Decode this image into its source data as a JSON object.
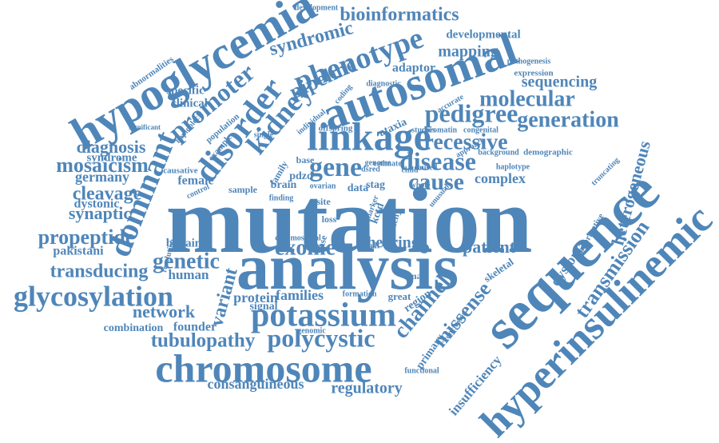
{
  "color": "#4f86b9",
  "words": [
    {
      "text": "mutation"
    },
    {
      "text": "analysis"
    },
    {
      "text": "sequence"
    },
    {
      "text": "hyperinsulinemic"
    },
    {
      "text": "hypoglycemia"
    },
    {
      "text": "autosomal"
    },
    {
      "text": "linkage"
    },
    {
      "text": "chromosome"
    },
    {
      "text": "potassium"
    },
    {
      "text": "glycosylation"
    },
    {
      "text": "dominant"
    },
    {
      "text": "disorder"
    },
    {
      "text": "promoter"
    },
    {
      "text": "phenotype"
    },
    {
      "text": "kidney"
    },
    {
      "text": "pipeline"
    },
    {
      "text": "pedigree"
    },
    {
      "text": "gene"
    },
    {
      "text": "disease"
    },
    {
      "text": "cause"
    },
    {
      "text": "recessive"
    },
    {
      "text": "molecular"
    },
    {
      "text": "generation"
    },
    {
      "text": "bioinformatics"
    },
    {
      "text": "syndromic"
    },
    {
      "text": "mapping"
    },
    {
      "text": "developmental"
    },
    {
      "text": "sequencing"
    },
    {
      "text": "adaptor"
    },
    {
      "text": "transmission"
    },
    {
      "text": "heterogeneous"
    },
    {
      "text": "polycystic"
    },
    {
      "text": "tubulopathy"
    },
    {
      "text": "channel"
    },
    {
      "text": "missense"
    },
    {
      "text": "exome"
    },
    {
      "text": "genetic"
    },
    {
      "text": "variant"
    },
    {
      "text": "transducing"
    },
    {
      "text": "propeptide"
    },
    {
      "text": "mosaicism"
    },
    {
      "text": "cleavage"
    },
    {
      "text": "diagnosis"
    },
    {
      "text": "network"
    },
    {
      "text": "consanguineous"
    },
    {
      "text": "regulatory"
    },
    {
      "text": "insufficiency"
    },
    {
      "text": "dystonia"
    },
    {
      "text": "patient"
    },
    {
      "text": "hearing"
    },
    {
      "text": "families"
    },
    {
      "text": "protein"
    },
    {
      "text": "complex"
    },
    {
      "text": "synaptic"
    },
    {
      "text": "dystonic"
    },
    {
      "text": "germany"
    },
    {
      "text": "syndrome"
    },
    {
      "text": "pakistani"
    },
    {
      "text": "human"
    },
    {
      "text": "founder"
    },
    {
      "text": "combination"
    },
    {
      "text": "britain"
    },
    {
      "text": "specific"
    },
    {
      "text": "clinical"
    },
    {
      "text": "abnormalities"
    },
    {
      "text": "development"
    },
    {
      "text": "pathogenesis"
    },
    {
      "text": "expression"
    },
    {
      "text": "accurate"
    },
    {
      "text": "diagnostic"
    },
    {
      "text": "approach"
    },
    {
      "text": "ataxia"
    },
    {
      "text": "chromatin"
    },
    {
      "text": "studies"
    },
    {
      "text": "congenital"
    },
    {
      "text": "background"
    },
    {
      "text": "demographic"
    },
    {
      "text": "haplotype"
    },
    {
      "text": "informative"
    },
    {
      "text": "truncating"
    },
    {
      "text": "skeletal"
    },
    {
      "text": "conclusion"
    },
    {
      "text": "primary"
    },
    {
      "text": "functional"
    },
    {
      "text": "region"
    },
    {
      "text": "great"
    },
    {
      "text": "male"
    },
    {
      "text": "genomic"
    },
    {
      "text": "formation"
    },
    {
      "text": "signal"
    },
    {
      "text": "female"
    },
    {
      "text": "family"
    },
    {
      "text": "base"
    },
    {
      "text": "pdzd"
    },
    {
      "text": "brain"
    },
    {
      "text": "data"
    },
    {
      "text": "stag"
    },
    {
      "text": "site"
    },
    {
      "text": "loss"
    },
    {
      "text": "case"
    },
    {
      "text": "ovarian"
    },
    {
      "text": "kcnj"
    },
    {
      "text": "kctd"
    },
    {
      "text": "rare"
    },
    {
      "text": "whole"
    },
    {
      "text": "child"
    },
    {
      "text": "caused"
    },
    {
      "text": "sample"
    },
    {
      "text": "control"
    },
    {
      "text": "causative"
    },
    {
      "text": "significant"
    },
    {
      "text": "haploblock"
    },
    {
      "text": "population"
    },
    {
      "text": "example"
    },
    {
      "text": "single"
    },
    {
      "text": "individual"
    },
    {
      "text": "offspring"
    },
    {
      "text": "coding"
    },
    {
      "text": "resolution"
    },
    {
      "text": "chromosomal"
    },
    {
      "text": "result"
    },
    {
      "text": "finding"
    },
    {
      "text": "unusual"
    },
    {
      "text": "genome"
    },
    {
      "text": "estimate"
    },
    {
      "text": "marker"
    },
    {
      "text": "dsred"
    },
    {
      "text": "ggce"
    }
  ]
}
